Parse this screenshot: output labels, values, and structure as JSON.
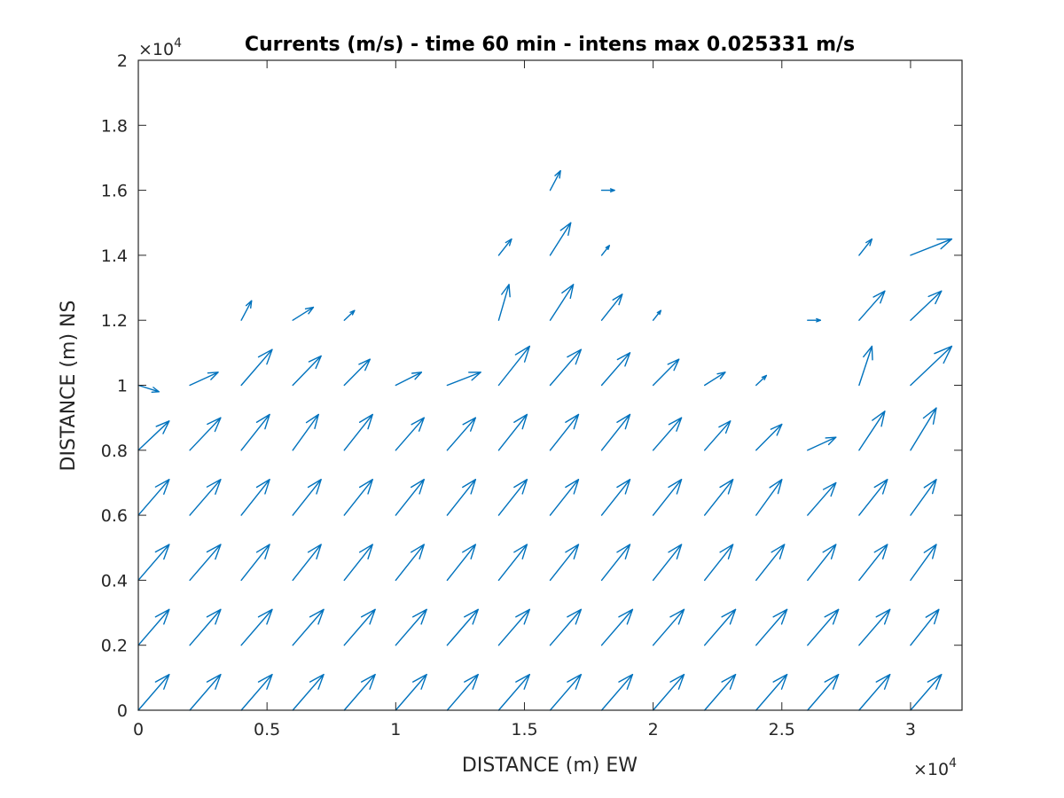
{
  "chart_data": {
    "type": "quiver",
    "title": "Currents (m/s) - time 60 min - intens max 0.025331 m/s",
    "xlabel": "DISTANCE (m) EW",
    "ylabel": "DISTANCE (m) NS",
    "xlim": [
      0,
      32000
    ],
    "ylim": [
      0,
      20000
    ],
    "x_ticks": [
      0,
      5000,
      10000,
      15000,
      20000,
      25000,
      30000
    ],
    "x_tick_labels": [
      "0",
      "0.5",
      "1",
      "1.5",
      "2",
      "2.5",
      "3"
    ],
    "y_ticks": [
      0,
      2000,
      4000,
      6000,
      8000,
      10000,
      12000,
      14000,
      16000,
      18000,
      20000
    ],
    "y_tick_labels": [
      "0",
      "0.2",
      "0.4",
      "0.6",
      "0.8",
      "1",
      "1.2",
      "1.4",
      "1.6",
      "1.8",
      "2"
    ],
    "x_exponent": {
      "base": "×10",
      "power": "4"
    },
    "y_exponent": {
      "base": "×10",
      "power": "4"
    },
    "arrow_color": "#0072bd",
    "grid": false,
    "vectors": [
      {
        "x": 0,
        "y": 0,
        "dx": 1200,
        "dy": 1100
      },
      {
        "x": 2000,
        "y": 0,
        "dx": 1200,
        "dy": 1100
      },
      {
        "x": 4000,
        "y": 0,
        "dx": 1200,
        "dy": 1100
      },
      {
        "x": 6000,
        "y": 0,
        "dx": 1200,
        "dy": 1100
      },
      {
        "x": 8000,
        "y": 0,
        "dx": 1200,
        "dy": 1100
      },
      {
        "x": 10000,
        "y": 0,
        "dx": 1200,
        "dy": 1100
      },
      {
        "x": 12000,
        "y": 0,
        "dx": 1200,
        "dy": 1100
      },
      {
        "x": 14000,
        "y": 0,
        "dx": 1200,
        "dy": 1100
      },
      {
        "x": 16000,
        "y": 0,
        "dx": 1200,
        "dy": 1100
      },
      {
        "x": 18000,
        "y": 0,
        "dx": 1200,
        "dy": 1100
      },
      {
        "x": 20000,
        "y": 0,
        "dx": 1200,
        "dy": 1100
      },
      {
        "x": 22000,
        "y": 0,
        "dx": 1200,
        "dy": 1100
      },
      {
        "x": 24000,
        "y": 0,
        "dx": 1200,
        "dy": 1100
      },
      {
        "x": 26000,
        "y": 0,
        "dx": 1200,
        "dy": 1100
      },
      {
        "x": 28000,
        "y": 0,
        "dx": 1200,
        "dy": 1100
      },
      {
        "x": 30000,
        "y": 0,
        "dx": 1200,
        "dy": 1100
      },
      {
        "x": 0,
        "y": 2000,
        "dx": 1200,
        "dy": 1100
      },
      {
        "x": 2000,
        "y": 2000,
        "dx": 1200,
        "dy": 1100
      },
      {
        "x": 4000,
        "y": 2000,
        "dx": 1200,
        "dy": 1100
      },
      {
        "x": 6000,
        "y": 2000,
        "dx": 1200,
        "dy": 1100
      },
      {
        "x": 8000,
        "y": 2000,
        "dx": 1200,
        "dy": 1100
      },
      {
        "x": 10000,
        "y": 2000,
        "dx": 1200,
        "dy": 1100
      },
      {
        "x": 12000,
        "y": 2000,
        "dx": 1200,
        "dy": 1100
      },
      {
        "x": 14000,
        "y": 2000,
        "dx": 1200,
        "dy": 1100
      },
      {
        "x": 16000,
        "y": 2000,
        "dx": 1200,
        "dy": 1100
      },
      {
        "x": 18000,
        "y": 2000,
        "dx": 1200,
        "dy": 1100
      },
      {
        "x": 20000,
        "y": 2000,
        "dx": 1200,
        "dy": 1100
      },
      {
        "x": 22000,
        "y": 2000,
        "dx": 1200,
        "dy": 1100
      },
      {
        "x": 24000,
        "y": 2000,
        "dx": 1200,
        "dy": 1100
      },
      {
        "x": 26000,
        "y": 2000,
        "dx": 1200,
        "dy": 1100
      },
      {
        "x": 28000,
        "y": 2000,
        "dx": 1200,
        "dy": 1100
      },
      {
        "x": 30000,
        "y": 2000,
        "dx": 1100,
        "dy": 1100
      },
      {
        "x": 0,
        "y": 4000,
        "dx": 1200,
        "dy": 1100
      },
      {
        "x": 2000,
        "y": 4000,
        "dx": 1200,
        "dy": 1100
      },
      {
        "x": 4000,
        "y": 4000,
        "dx": 1100,
        "dy": 1100
      },
      {
        "x": 6000,
        "y": 4000,
        "dx": 1100,
        "dy": 1100
      },
      {
        "x": 8000,
        "y": 4000,
        "dx": 1100,
        "dy": 1100
      },
      {
        "x": 10000,
        "y": 4000,
        "dx": 1100,
        "dy": 1100
      },
      {
        "x": 12000,
        "y": 4000,
        "dx": 1100,
        "dy": 1100
      },
      {
        "x": 14000,
        "y": 4000,
        "dx": 1100,
        "dy": 1100
      },
      {
        "x": 16000,
        "y": 4000,
        "dx": 1100,
        "dy": 1100
      },
      {
        "x": 18000,
        "y": 4000,
        "dx": 1100,
        "dy": 1100
      },
      {
        "x": 20000,
        "y": 4000,
        "dx": 1100,
        "dy": 1100
      },
      {
        "x": 22000,
        "y": 4000,
        "dx": 1100,
        "dy": 1100
      },
      {
        "x": 24000,
        "y": 4000,
        "dx": 1100,
        "dy": 1100
      },
      {
        "x": 26000,
        "y": 4000,
        "dx": 1100,
        "dy": 1100
      },
      {
        "x": 28000,
        "y": 4000,
        "dx": 1100,
        "dy": 1100
      },
      {
        "x": 30000,
        "y": 4000,
        "dx": 1000,
        "dy": 1100
      },
      {
        "x": 0,
        "y": 6000,
        "dx": 1200,
        "dy": 1100
      },
      {
        "x": 2000,
        "y": 6000,
        "dx": 1200,
        "dy": 1100
      },
      {
        "x": 4000,
        "y": 6000,
        "dx": 1100,
        "dy": 1100
      },
      {
        "x": 6000,
        "y": 6000,
        "dx": 1100,
        "dy": 1100
      },
      {
        "x": 8000,
        "y": 6000,
        "dx": 1100,
        "dy": 1100
      },
      {
        "x": 10000,
        "y": 6000,
        "dx": 1100,
        "dy": 1100
      },
      {
        "x": 12000,
        "y": 6000,
        "dx": 1100,
        "dy": 1100
      },
      {
        "x": 14000,
        "y": 6000,
        "dx": 1100,
        "dy": 1100
      },
      {
        "x": 16000,
        "y": 6000,
        "dx": 1100,
        "dy": 1100
      },
      {
        "x": 18000,
        "y": 6000,
        "dx": 1100,
        "dy": 1100
      },
      {
        "x": 20000,
        "y": 6000,
        "dx": 1100,
        "dy": 1100
      },
      {
        "x": 22000,
        "y": 6000,
        "dx": 1100,
        "dy": 1100
      },
      {
        "x": 24000,
        "y": 6000,
        "dx": 1000,
        "dy": 1100
      },
      {
        "x": 26000,
        "y": 6000,
        "dx": 1100,
        "dy": 1000
      },
      {
        "x": 28000,
        "y": 6000,
        "dx": 1100,
        "dy": 1100
      },
      {
        "x": 30000,
        "y": 6000,
        "dx": 1000,
        "dy": 1100
      },
      {
        "x": 0,
        "y": 8000,
        "dx": 1200,
        "dy": 900
      },
      {
        "x": 2000,
        "y": 8000,
        "dx": 1200,
        "dy": 1000
      },
      {
        "x": 4000,
        "y": 8000,
        "dx": 1100,
        "dy": 1100
      },
      {
        "x": 6000,
        "y": 8000,
        "dx": 1000,
        "dy": 1100
      },
      {
        "x": 8000,
        "y": 8000,
        "dx": 1100,
        "dy": 1100
      },
      {
        "x": 10000,
        "y": 8000,
        "dx": 1100,
        "dy": 1000
      },
      {
        "x": 12000,
        "y": 8000,
        "dx": 1100,
        "dy": 1000
      },
      {
        "x": 14000,
        "y": 8000,
        "dx": 1100,
        "dy": 1100
      },
      {
        "x": 16000,
        "y": 8000,
        "dx": 1100,
        "dy": 1100
      },
      {
        "x": 18000,
        "y": 8000,
        "dx": 1100,
        "dy": 1100
      },
      {
        "x": 20000,
        "y": 8000,
        "dx": 1100,
        "dy": 1000
      },
      {
        "x": 22000,
        "y": 8000,
        "dx": 1000,
        "dy": 900
      },
      {
        "x": 24000,
        "y": 8000,
        "dx": 1000,
        "dy": 800
      },
      {
        "x": 26000,
        "y": 8000,
        "dx": 1100,
        "dy": 400
      },
      {
        "x": 28000,
        "y": 8000,
        "dx": 1000,
        "dy": 1200
      },
      {
        "x": 30000,
        "y": 8000,
        "dx": 1000,
        "dy": 1300
      },
      {
        "x": 0,
        "y": 10000,
        "dx": 800,
        "dy": -200
      },
      {
        "x": 2000,
        "y": 10000,
        "dx": 1100,
        "dy": 400
      },
      {
        "x": 4000,
        "y": 10000,
        "dx": 1200,
        "dy": 1100
      },
      {
        "x": 6000,
        "y": 10000,
        "dx": 1100,
        "dy": 900
      },
      {
        "x": 8000,
        "y": 10000,
        "dx": 1000,
        "dy": 800
      },
      {
        "x": 10000,
        "y": 10000,
        "dx": 1000,
        "dy": 400
      },
      {
        "x": 12000,
        "y": 10000,
        "dx": 1300,
        "dy": 400
      },
      {
        "x": 14000,
        "y": 10000,
        "dx": 1200,
        "dy": 1200
      },
      {
        "x": 16000,
        "y": 10000,
        "dx": 1200,
        "dy": 1100
      },
      {
        "x": 18000,
        "y": 10000,
        "dx": 1100,
        "dy": 1000
      },
      {
        "x": 20000,
        "y": 10000,
        "dx": 1000,
        "dy": 800
      },
      {
        "x": 22000,
        "y": 10000,
        "dx": 800,
        "dy": 400
      },
      {
        "x": 24000,
        "y": 10000,
        "dx": 400,
        "dy": 300
      },
      {
        "x": 28000,
        "y": 10000,
        "dx": 500,
        "dy": 1200
      },
      {
        "x": 30000,
        "y": 10000,
        "dx": 1600,
        "dy": 1200
      },
      {
        "x": 4000,
        "y": 12000,
        "dx": 400,
        "dy": 600
      },
      {
        "x": 6000,
        "y": 12000,
        "dx": 800,
        "dy": 400
      },
      {
        "x": 8000,
        "y": 12000,
        "dx": 400,
        "dy": 300
      },
      {
        "x": 14000,
        "y": 12000,
        "dx": 400,
        "dy": 1100
      },
      {
        "x": 16000,
        "y": 12000,
        "dx": 900,
        "dy": 1100
      },
      {
        "x": 18000,
        "y": 12000,
        "dx": 800,
        "dy": 800
      },
      {
        "x": 20000,
        "y": 12000,
        "dx": 300,
        "dy": 300
      },
      {
        "x": 26000,
        "y": 12000,
        "dx": 500,
        "dy": 0
      },
      {
        "x": 28000,
        "y": 12000,
        "dx": 1000,
        "dy": 900
      },
      {
        "x": 30000,
        "y": 12000,
        "dx": 1200,
        "dy": 900
      },
      {
        "x": 14000,
        "y": 14000,
        "dx": 500,
        "dy": 500
      },
      {
        "x": 16000,
        "y": 14000,
        "dx": 800,
        "dy": 1000
      },
      {
        "x": 18000,
        "y": 14000,
        "dx": 300,
        "dy": 300
      },
      {
        "x": 28000,
        "y": 14000,
        "dx": 500,
        "dy": 500
      },
      {
        "x": 30000,
        "y": 14000,
        "dx": 1600,
        "dy": 500
      },
      {
        "x": 16000,
        "y": 16000,
        "dx": 400,
        "dy": 600
      },
      {
        "x": 18000,
        "y": 16000,
        "dx": 500,
        "dy": 0
      }
    ]
  }
}
